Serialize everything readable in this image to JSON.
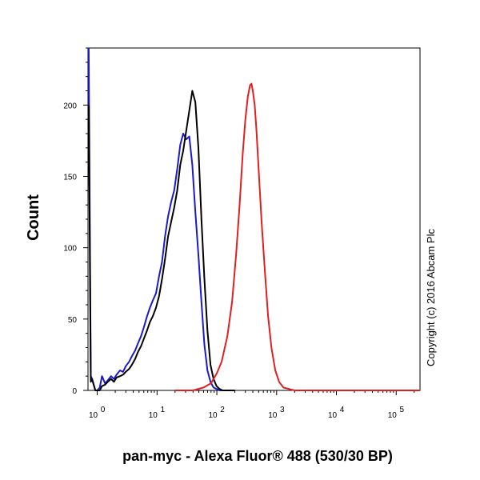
{
  "chart_data": {
    "type": "line",
    "title": "",
    "xlabel": "pan-myc - Alexa Fluor® 488 (530/30 BP)",
    "ylabel": "Count",
    "x_scale": "log",
    "xlim": [
      0.7,
      250000
    ],
    "ylim": [
      0,
      240
    ],
    "x_ticks": [
      {
        "value": 1,
        "base": "10",
        "exp": "0"
      },
      {
        "value": 10,
        "base": "10",
        "exp": "1"
      },
      {
        "value": 100,
        "base": "10",
        "exp": "2"
      },
      {
        "value": 1000,
        "base": "10",
        "exp": "3"
      },
      {
        "value": 10000,
        "base": "10",
        "exp": "4"
      },
      {
        "value": 100000,
        "base": "10",
        "exp": "5"
      }
    ],
    "y_ticks": [
      {
        "value": 0,
        "label": "0"
      },
      {
        "value": 50,
        "label": "50"
      },
      {
        "value": 100,
        "label": "100"
      },
      {
        "value": 150,
        "label": "150"
      },
      {
        "value": 200,
        "label": "200"
      }
    ],
    "legend": "none",
    "grid": false,
    "series": [
      {
        "color": "#1a1acc",
        "x": [
          0.72,
          0.78,
          0.82,
          0.87,
          0.93,
          1.0,
          1.1,
          1.2,
          1.35,
          1.5,
          1.7,
          1.9,
          2.1,
          2.4,
          2.7,
          3.0,
          3.4,
          3.8,
          4.3,
          4.8,
          5.4,
          6.0,
          6.8,
          7.6,
          8.5,
          9.6,
          10.8,
          12.1,
          13.6,
          15.3,
          17.2,
          19.3,
          21.7,
          24.4,
          27.4,
          30.8,
          34.6,
          38.9,
          43.7,
          49.1,
          55.2,
          62.0,
          69.7,
          78.3,
          88.0,
          98.9,
          111,
          125,
          140
        ],
        "y": [
          240,
          10,
          8,
          4,
          0,
          0,
          2,
          10,
          5,
          7,
          10,
          8,
          11,
          14,
          13,
          17,
          20,
          24,
          28,
          33,
          38,
          44,
          52,
          58,
          63,
          68,
          80,
          90,
          108,
          122,
          132,
          140,
          155,
          172,
          180,
          176,
          178,
          158,
          125,
          95,
          62,
          32,
          14,
          6,
          2,
          1,
          0,
          0,
          0
        ]
      },
      {
        "color": "#000000",
        "x": [
          0.72,
          0.78,
          0.82,
          0.87,
          0.93,
          1.0,
          1.1,
          1.2,
          1.35,
          1.5,
          1.7,
          1.9,
          2.1,
          2.4,
          2.7,
          3.0,
          3.4,
          3.8,
          4.3,
          4.8,
          5.4,
          6.0,
          6.8,
          7.6,
          8.5,
          9.6,
          10.8,
          12.1,
          13.6,
          15.3,
          17.2,
          19.3,
          21.7,
          24.4,
          27.4,
          30.8,
          34.6,
          38.9,
          43.7,
          49.1,
          55.2,
          62.0,
          69.7,
          78.3,
          88.0,
          98.9,
          111,
          125,
          140,
          160,
          200
        ],
        "y": [
          200,
          6,
          8,
          4,
          0,
          0,
          0,
          3,
          4,
          6,
          8,
          6,
          9,
          10,
          11,
          13,
          15,
          18,
          22,
          27,
          31,
          36,
          42,
          48,
          52,
          58,
          66,
          78,
          92,
          108,
          118,
          128,
          140,
          158,
          168,
          182,
          196,
          210,
          202,
          170,
          120,
          78,
          42,
          18,
          8,
          3,
          1,
          0,
          0,
          0,
          0
        ]
      },
      {
        "color": "#e02020",
        "x": [
          20,
          40,
          60,
          80,
          100,
          120,
          150,
          180,
          210,
          240,
          270,
          300,
          330,
          360,
          380,
          400,
          430,
          460,
          500,
          560,
          640,
          720,
          820,
          950,
          1100,
          1300,
          1600,
          2000,
          3000,
          10000,
          250000
        ],
        "y": [
          0,
          0,
          2,
          5,
          12,
          20,
          38,
          62,
          95,
          130,
          165,
          190,
          206,
          214,
          215,
          210,
          200,
          182,
          155,
          118,
          82,
          52,
          30,
          14,
          6,
          2,
          1,
          0,
          0,
          0,
          0
        ]
      }
    ]
  },
  "copyright": "Copyright (c) 2016 Abcam Plc"
}
